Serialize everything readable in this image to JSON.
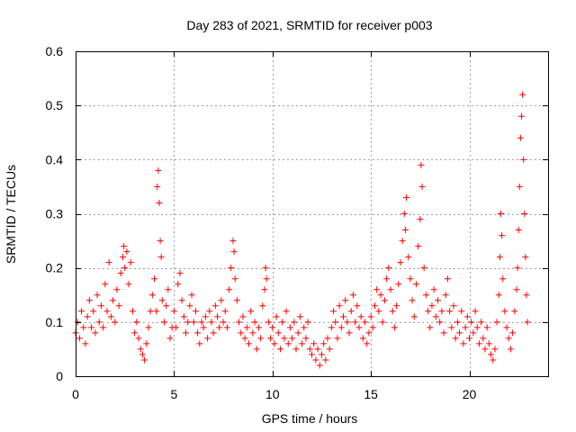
{
  "chart_data": {
    "type": "scatter",
    "title": "Day 283 of 2021, SRMTID for receiver p003",
    "xlabel": "GPS time / hours",
    "ylabel": "SRMTID / TECUs",
    "xlim": [
      0,
      24
    ],
    "ylim": [
      0,
      0.6
    ],
    "x_ticks": [
      {
        "value": 0,
        "label": "0"
      },
      {
        "value": 5,
        "label": "5"
      },
      {
        "value": 10,
        "label": "10"
      },
      {
        "value": 15,
        "label": "15"
      },
      {
        "value": 20,
        "label": "20"
      }
    ],
    "y_ticks": [
      {
        "value": 0,
        "label": "0"
      },
      {
        "value": 0.1,
        "label": "0.1"
      },
      {
        "value": 0.2,
        "label": "0.2"
      },
      {
        "value": 0.3,
        "label": "0.3"
      },
      {
        "value": 0.4,
        "label": "0.4"
      },
      {
        "value": 0.5,
        "label": "0.5"
      },
      {
        "value": 0.6,
        "label": "0.6"
      }
    ],
    "grid": true,
    "marker": "plus",
    "series": [
      {
        "name": "SRMTID",
        "color": "#ff0000",
        "points": [
          [
            0.0,
            0.08
          ],
          [
            0.1,
            0.1
          ],
          [
            0.2,
            0.07
          ],
          [
            0.3,
            0.12
          ],
          [
            0.4,
            0.09
          ],
          [
            0.5,
            0.06
          ],
          [
            0.6,
            0.11
          ],
          [
            0.7,
            0.14
          ],
          [
            0.8,
            0.09
          ],
          [
            0.9,
            0.12
          ],
          [
            1.0,
            0.08
          ],
          [
            1.1,
            0.15
          ],
          [
            1.2,
            0.1
          ],
          [
            1.3,
            0.13
          ],
          [
            1.4,
            0.09
          ],
          [
            1.5,
            0.17
          ],
          [
            1.6,
            0.12
          ],
          [
            1.7,
            0.21
          ],
          [
            1.8,
            0.11
          ],
          [
            1.9,
            0.14
          ],
          [
            2.0,
            0.1
          ],
          [
            2.1,
            0.16
          ],
          [
            2.2,
            0.13
          ],
          [
            2.3,
            0.19
          ],
          [
            2.4,
            0.22
          ],
          [
            2.45,
            0.24
          ],
          [
            2.5,
            0.2
          ],
          [
            2.6,
            0.23
          ],
          [
            2.7,
            0.17
          ],
          [
            2.8,
            0.21
          ],
          [
            2.9,
            0.12
          ],
          [
            3.0,
            0.08
          ],
          [
            3.1,
            0.1
          ],
          [
            3.2,
            0.07
          ],
          [
            3.3,
            0.05
          ],
          [
            3.4,
            0.04
          ],
          [
            3.5,
            0.03
          ],
          [
            3.6,
            0.06
          ],
          [
            3.7,
            0.09
          ],
          [
            3.8,
            0.12
          ],
          [
            3.9,
            0.15
          ],
          [
            4.0,
            0.18
          ],
          [
            4.1,
            0.12
          ],
          [
            4.15,
            0.35
          ],
          [
            4.2,
            0.38
          ],
          [
            4.25,
            0.32
          ],
          [
            4.3,
            0.25
          ],
          [
            4.35,
            0.22
          ],
          [
            4.4,
            0.14
          ],
          [
            4.5,
            0.1
          ],
          [
            4.6,
            0.13
          ],
          [
            4.7,
            0.16
          ],
          [
            4.8,
            0.07
          ],
          [
            4.9,
            0.09
          ],
          [
            5.0,
            0.12
          ],
          [
            5.1,
            0.09
          ],
          [
            5.2,
            0.17
          ],
          [
            5.3,
            0.19
          ],
          [
            5.4,
            0.14
          ],
          [
            5.5,
            0.11
          ],
          [
            5.6,
            0.08
          ],
          [
            5.7,
            0.1
          ],
          [
            5.8,
            0.13
          ],
          [
            5.9,
            0.15
          ],
          [
            6.0,
            0.1
          ],
          [
            6.1,
            0.12
          ],
          [
            6.2,
            0.08
          ],
          [
            6.3,
            0.06
          ],
          [
            6.4,
            0.1
          ],
          [
            6.5,
            0.09
          ],
          [
            6.6,
            0.11
          ],
          [
            6.7,
            0.07
          ],
          [
            6.8,
            0.12
          ],
          [
            6.9,
            0.1
          ],
          [
            7.0,
            0.08
          ],
          [
            7.1,
            0.13
          ],
          [
            7.2,
            0.11
          ],
          [
            7.3,
            0.09
          ],
          [
            7.4,
            0.14
          ],
          [
            7.5,
            0.1
          ],
          [
            7.6,
            0.12
          ],
          [
            7.7,
            0.09
          ],
          [
            7.8,
            0.16
          ],
          [
            7.9,
            0.2
          ],
          [
            8.0,
            0.25
          ],
          [
            8.05,
            0.23
          ],
          [
            8.1,
            0.18
          ],
          [
            8.2,
            0.14
          ],
          [
            8.3,
            0.1
          ],
          [
            8.4,
            0.08
          ],
          [
            8.5,
            0.11
          ],
          [
            8.6,
            0.07
          ],
          [
            8.7,
            0.09
          ],
          [
            8.8,
            0.06
          ],
          [
            8.9,
            0.12
          ],
          [
            9.0,
            0.08
          ],
          [
            9.1,
            0.1
          ],
          [
            9.2,
            0.05
          ],
          [
            9.3,
            0.09
          ],
          [
            9.4,
            0.07
          ],
          [
            9.5,
            0.13
          ],
          [
            9.6,
            0.16
          ],
          [
            9.65,
            0.2
          ],
          [
            9.7,
            0.18
          ],
          [
            9.8,
            0.1
          ],
          [
            9.9,
            0.07
          ],
          [
            10.0,
            0.09
          ],
          [
            10.1,
            0.06
          ],
          [
            10.2,
            0.11
          ],
          [
            10.3,
            0.08
          ],
          [
            10.4,
            0.05
          ],
          [
            10.5,
            0.1
          ],
          [
            10.6,
            0.07
          ],
          [
            10.7,
            0.12
          ],
          [
            10.8,
            0.06
          ],
          [
            10.9,
            0.09
          ],
          [
            11.0,
            0.07
          ],
          [
            11.1,
            0.1
          ],
          [
            11.2,
            0.05
          ],
          [
            11.3,
            0.08
          ],
          [
            11.4,
            0.11
          ],
          [
            11.5,
            0.06
          ],
          [
            11.6,
            0.09
          ],
          [
            11.7,
            0.07
          ],
          [
            11.8,
            0.1
          ],
          [
            11.9,
            0.05
          ],
          [
            12.0,
            0.04
          ],
          [
            12.1,
            0.06
          ],
          [
            12.2,
            0.03
          ],
          [
            12.3,
            0.05
          ],
          [
            12.4,
            0.02
          ],
          [
            12.5,
            0.04
          ],
          [
            12.6,
            0.06
          ],
          [
            12.7,
            0.03
          ],
          [
            12.8,
            0.07
          ],
          [
            12.9,
            0.05
          ],
          [
            13.0,
            0.09
          ],
          [
            13.1,
            0.12
          ],
          [
            13.2,
            0.1
          ],
          [
            13.3,
            0.07
          ],
          [
            13.4,
            0.13
          ],
          [
            13.5,
            0.09
          ],
          [
            13.6,
            0.11
          ],
          [
            13.7,
            0.14
          ],
          [
            13.8,
            0.1
          ],
          [
            13.9,
            0.08
          ],
          [
            14.0,
            0.12
          ],
          [
            14.1,
            0.15
          ],
          [
            14.2,
            0.1
          ],
          [
            14.3,
            0.13
          ],
          [
            14.4,
            0.09
          ],
          [
            14.5,
            0.11
          ],
          [
            14.6,
            0.07
          ],
          [
            14.7,
            0.1
          ],
          [
            14.8,
            0.06
          ],
          [
            14.9,
            0.08
          ],
          [
            15.0,
            0.11
          ],
          [
            15.1,
            0.09
          ],
          [
            15.2,
            0.13
          ],
          [
            15.3,
            0.16
          ],
          [
            15.4,
            0.12
          ],
          [
            15.5,
            0.15
          ],
          [
            15.6,
            0.1
          ],
          [
            15.7,
            0.14
          ],
          [
            15.8,
            0.18
          ],
          [
            15.9,
            0.2
          ],
          [
            16.0,
            0.16
          ],
          [
            16.1,
            0.12
          ],
          [
            16.2,
            0.09
          ],
          [
            16.3,
            0.13
          ],
          [
            16.4,
            0.17
          ],
          [
            16.5,
            0.21
          ],
          [
            16.6,
            0.25
          ],
          [
            16.7,
            0.3
          ],
          [
            16.75,
            0.27
          ],
          [
            16.8,
            0.33
          ],
          [
            16.9,
            0.22
          ],
          [
            17.0,
            0.18
          ],
          [
            17.1,
            0.14
          ],
          [
            17.2,
            0.11
          ],
          [
            17.3,
            0.17
          ],
          [
            17.4,
            0.24
          ],
          [
            17.5,
            0.29
          ],
          [
            17.55,
            0.39
          ],
          [
            17.6,
            0.35
          ],
          [
            17.7,
            0.2
          ],
          [
            17.8,
            0.15
          ],
          [
            17.9,
            0.12
          ],
          [
            18.0,
            0.09
          ],
          [
            18.1,
            0.13
          ],
          [
            18.2,
            0.16
          ],
          [
            18.3,
            0.11
          ],
          [
            18.4,
            0.14
          ],
          [
            18.5,
            0.1
          ],
          [
            18.6,
            0.12
          ],
          [
            18.7,
            0.08
          ],
          [
            18.8,
            0.15
          ],
          [
            18.9,
            0.18
          ],
          [
            19.0,
            0.12
          ],
          [
            19.1,
            0.09
          ],
          [
            19.2,
            0.13
          ],
          [
            19.3,
            0.07
          ],
          [
            19.4,
            0.1
          ],
          [
            19.5,
            0.08
          ],
          [
            19.6,
            0.12
          ],
          [
            19.7,
            0.06
          ],
          [
            19.8,
            0.09
          ],
          [
            19.9,
            0.11
          ],
          [
            20.0,
            0.07
          ],
          [
            20.1,
            0.1
          ],
          [
            20.2,
            0.08
          ],
          [
            20.3,
            0.12
          ],
          [
            20.4,
            0.09
          ],
          [
            20.5,
            0.06
          ],
          [
            20.6,
            0.1
          ],
          [
            20.7,
            0.07
          ],
          [
            20.8,
            0.05
          ],
          [
            20.9,
            0.09
          ],
          [
            21.0,
            0.06
          ],
          [
            21.1,
            0.04
          ],
          [
            21.2,
            0.03
          ],
          [
            21.3,
            0.05
          ],
          [
            21.4,
            0.1
          ],
          [
            21.5,
            0.15
          ],
          [
            21.55,
            0.22
          ],
          [
            21.6,
            0.3
          ],
          [
            21.65,
            0.26
          ],
          [
            21.7,
            0.18
          ],
          [
            21.8,
            0.12
          ],
          [
            21.9,
            0.09
          ],
          [
            22.0,
            0.07
          ],
          [
            22.1,
            0.05
          ],
          [
            22.2,
            0.08
          ],
          [
            22.3,
            0.12
          ],
          [
            22.4,
            0.16
          ],
          [
            22.45,
            0.2
          ],
          [
            22.5,
            0.27
          ],
          [
            22.55,
            0.35
          ],
          [
            22.6,
            0.44
          ],
          [
            22.65,
            0.48
          ],
          [
            22.7,
            0.52
          ],
          [
            22.75,
            0.4
          ],
          [
            22.8,
            0.3
          ],
          [
            22.85,
            0.22
          ],
          [
            22.9,
            0.15
          ],
          [
            22.95,
            0.1
          ]
        ]
      }
    ]
  }
}
